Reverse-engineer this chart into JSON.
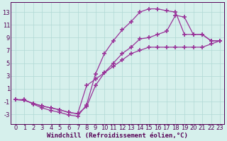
{
  "background_color": "#d6f0ec",
  "line_color": "#993399",
  "grid_color": "#b0d8d4",
  "axis_color": "#550055",
  "tick_label_color": "#550055",
  "xlabel": "Windchill (Refroidissement éolien,°C)",
  "xlim": [
    -0.5,
    23.5
  ],
  "ylim": [
    -4.5,
    14.5
  ],
  "xticks": [
    0,
    1,
    2,
    3,
    4,
    5,
    6,
    7,
    8,
    9,
    10,
    11,
    12,
    13,
    14,
    15,
    16,
    17,
    18,
    19,
    20,
    21,
    22,
    23
  ],
  "yticks": [
    -3,
    -1,
    1,
    3,
    5,
    7,
    9,
    11,
    13
  ],
  "curve1_x": [
    0,
    1,
    2,
    3,
    4,
    5,
    6,
    7,
    8,
    9,
    10,
    11,
    12,
    13,
    14,
    15,
    16,
    17,
    18,
    19,
    20,
    21,
    22,
    23
  ],
  "curve1_y": [
    -0.7,
    -0.7,
    -1.4,
    -2.0,
    -2.4,
    -2.7,
    -3.1,
    -3.3,
    -1.5,
    3.3,
    6.5,
    8.5,
    10.2,
    11.5,
    13.0,
    13.5,
    13.5,
    13.2,
    13.0,
    9.5,
    9.5,
    9.5,
    8.5,
    8.5
  ],
  "curve2_x": [
    0,
    1,
    2,
    3,
    4,
    5,
    6,
    7,
    8,
    9,
    10,
    11,
    12,
    13,
    14,
    15,
    16,
    17,
    18,
    19,
    20,
    21,
    22,
    23
  ],
  "curve2_y": [
    -0.7,
    -0.8,
    -1.3,
    -1.7,
    -2.0,
    -2.3,
    -2.7,
    -2.9,
    -1.8,
    1.5,
    3.5,
    5.0,
    6.5,
    7.5,
    8.8,
    9.0,
    9.5,
    10.0,
    12.5,
    12.2,
    9.5,
    9.5,
    8.5,
    8.5
  ],
  "curve3_x": [
    0,
    1,
    2,
    3,
    4,
    5,
    6,
    7,
    8,
    9,
    10,
    11,
    12,
    13,
    14,
    15,
    16,
    17,
    18,
    19,
    20,
    21,
    22,
    23
  ],
  "curve3_y": [
    -0.7,
    -0.8,
    -1.3,
    -1.7,
    -2.0,
    -2.3,
    -2.7,
    -2.9,
    1.5,
    2.5,
    3.5,
    4.5,
    5.5,
    6.5,
    7.0,
    7.5,
    7.5,
    7.5,
    7.5,
    7.5,
    7.5,
    7.5,
    8.0,
    8.5
  ],
  "marker": "+",
  "markersize": 4,
  "markeredgewidth": 1.2,
  "linewidth": 0.9,
  "xlabel_fontsize": 6.5,
  "tick_fontsize": 6
}
